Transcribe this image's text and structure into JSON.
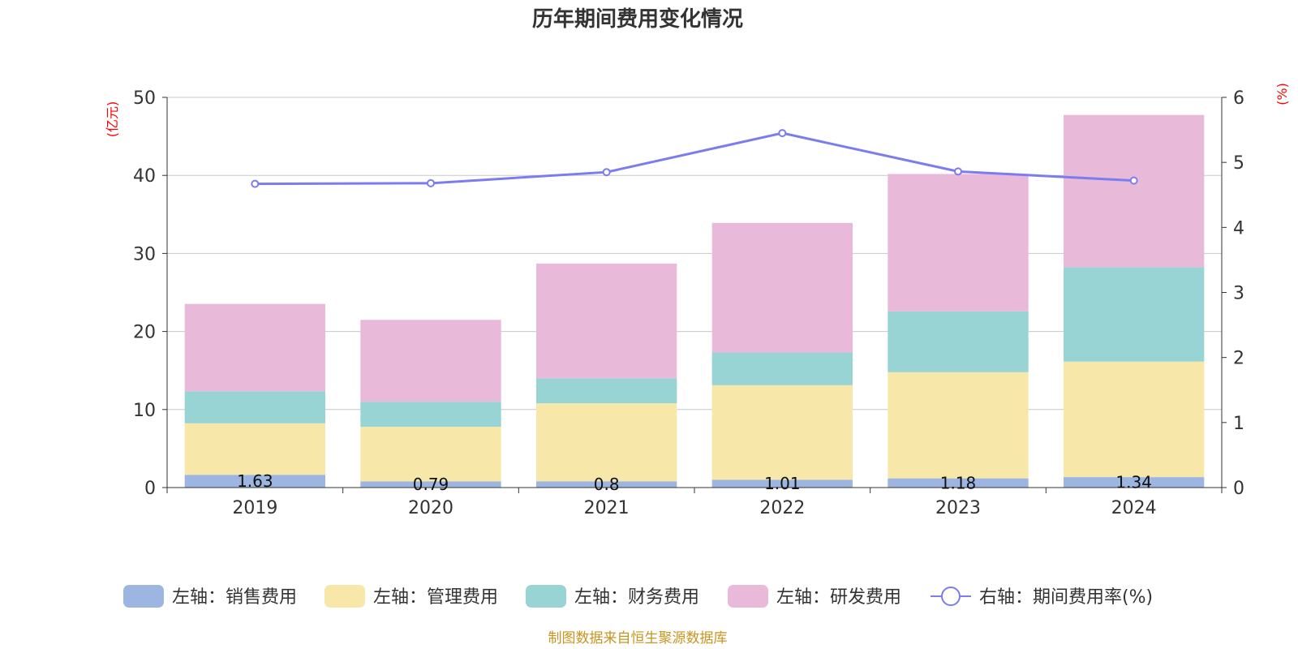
{
  "chart_data": {
    "type": "bar",
    "stacked": true,
    "title": "历年期间费用变化情况",
    "categories": [
      "2019",
      "2020",
      "2021",
      "2022",
      "2023",
      "2024"
    ],
    "y_left": {
      "label": "(亿元)",
      "ylim": [
        0,
        50
      ],
      "ticks": [
        "0",
        "10",
        "20",
        "30",
        "40",
        "50"
      ]
    },
    "y_right": {
      "label": "(%)",
      "ylim": [
        0,
        6
      ],
      "ticks": [
        "0",
        "1",
        "2",
        "3",
        "4",
        "5",
        "6"
      ]
    },
    "series": [
      {
        "name": "左轴：销售费用",
        "color": "#9db5e1",
        "axis": "left",
        "values": [
          1.63,
          0.79,
          0.8,
          1.01,
          1.18,
          1.34
        ],
        "labels": [
          "1.63",
          "0.79",
          "0.8",
          "1.01",
          "1.18",
          "1.34"
        ]
      },
      {
        "name": "左轴：管理费用",
        "color": "#f7e7a8",
        "axis": "left",
        "values": [
          6.6,
          7.0,
          10.0,
          12.1,
          13.6,
          14.8
        ]
      },
      {
        "name": "左轴：财务费用",
        "color": "#99d4d4",
        "axis": "left",
        "values": [
          4.1,
          3.2,
          3.2,
          4.2,
          7.8,
          12.1
        ]
      },
      {
        "name": "左轴：研发费用",
        "color": "#e8b9d9",
        "axis": "left",
        "values": [
          11.2,
          10.5,
          14.7,
          16.6,
          17.6,
          19.5
        ]
      },
      {
        "name": "右轴：期间费用率(%)",
        "type": "line",
        "color": "#7b7cf0",
        "axis": "right",
        "values": [
          4.67,
          4.68,
          4.85,
          5.45,
          4.86,
          4.72
        ]
      }
    ],
    "grid": true,
    "legend_position": "bottom"
  },
  "source_text": "制图数据来自恒生聚源数据库"
}
